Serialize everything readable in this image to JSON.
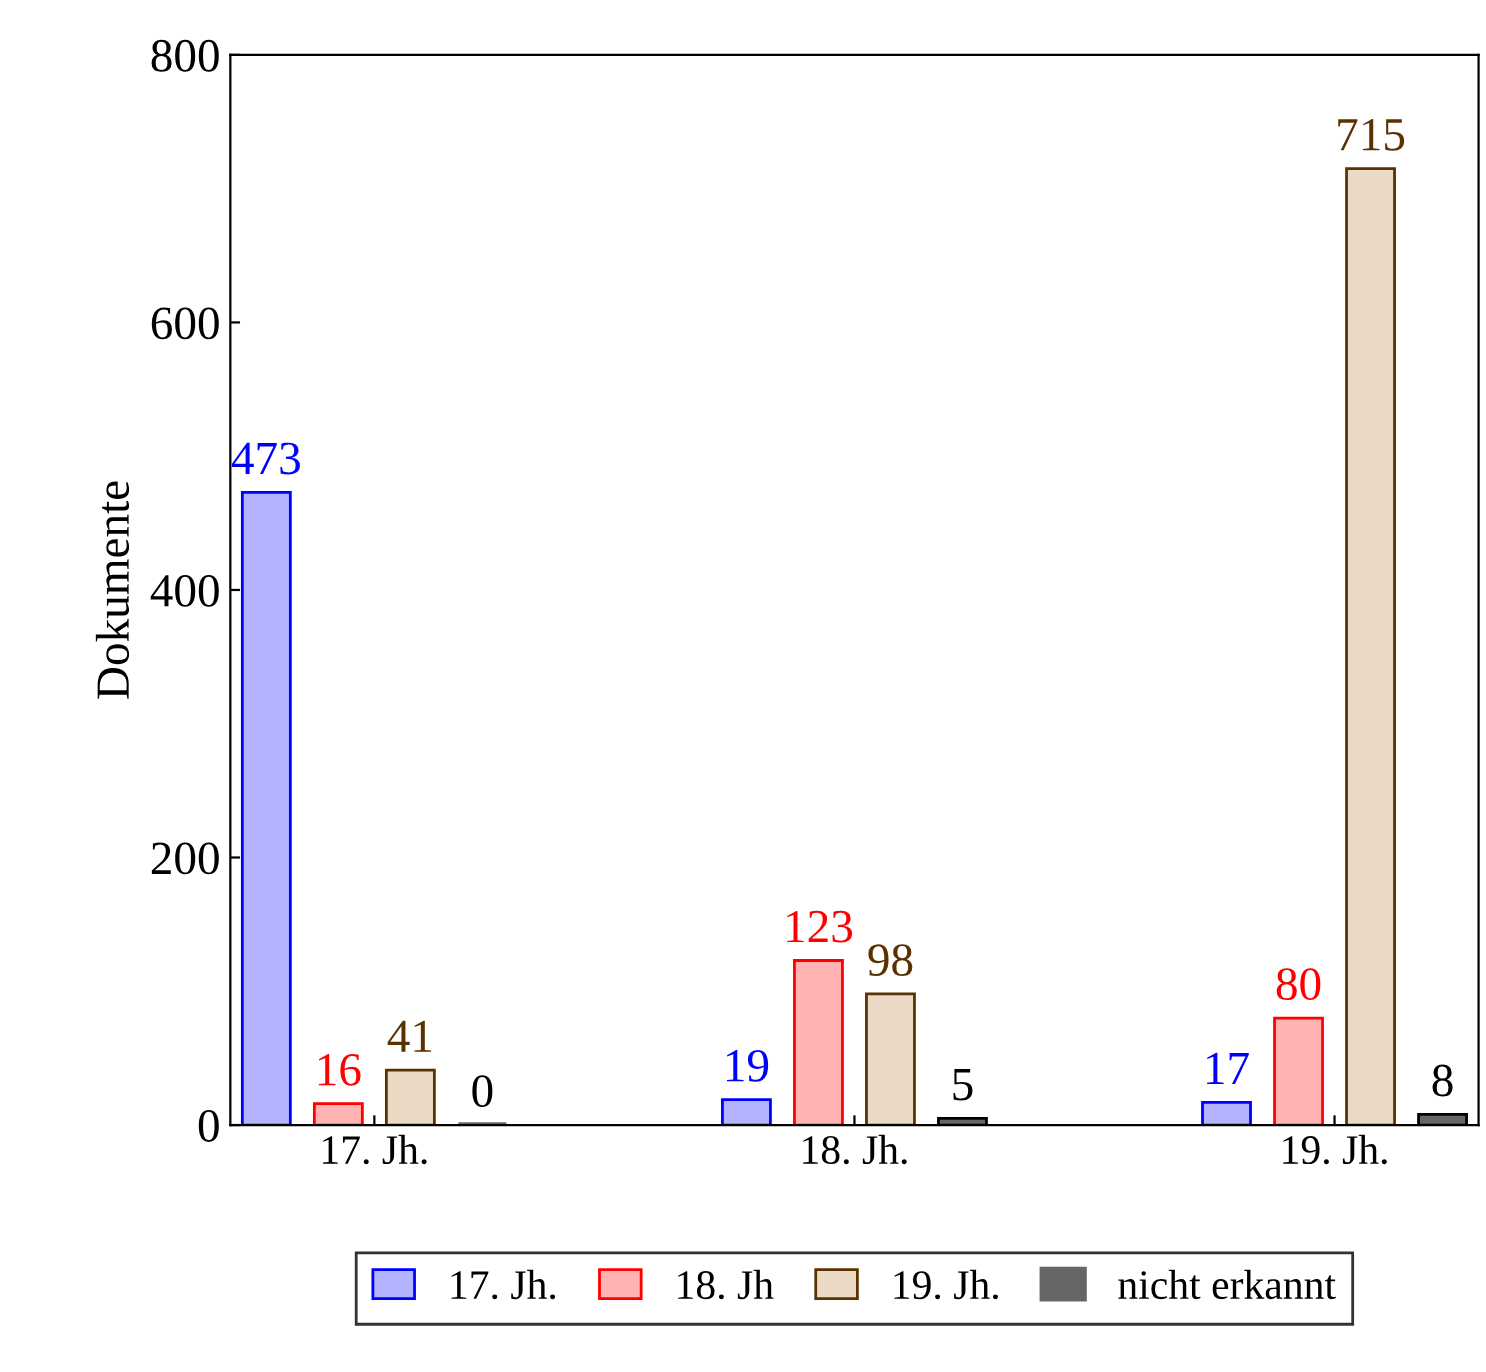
{
  "chart_data": {
    "type": "bar",
    "ylabel": "Dokumente",
    "categories": [
      "17. Jh.",
      "18. Jh.",
      "19. Jh."
    ],
    "series": [
      {
        "name": "17. Jh.",
        "color": "#b3b3ff",
        "values": [
          473,
          19,
          17
        ]
      },
      {
        "name": "18. Jh",
        "color": "#ffb3b3",
        "values": [
          16,
          123,
          80
        ]
      },
      {
        "name": "19. Jh.",
        "color": "#ead9c4",
        "values": [
          41,
          98,
          715
        ]
      },
      {
        "name": "nicht erkannt",
        "color": "#666666",
        "values": [
          0,
          5,
          8
        ]
      }
    ],
    "ylim": [
      0,
      800
    ],
    "yticks": [
      0,
      200,
      400,
      600,
      800
    ],
    "data_labels": true,
    "grid": false,
    "legend": "bottom"
  }
}
